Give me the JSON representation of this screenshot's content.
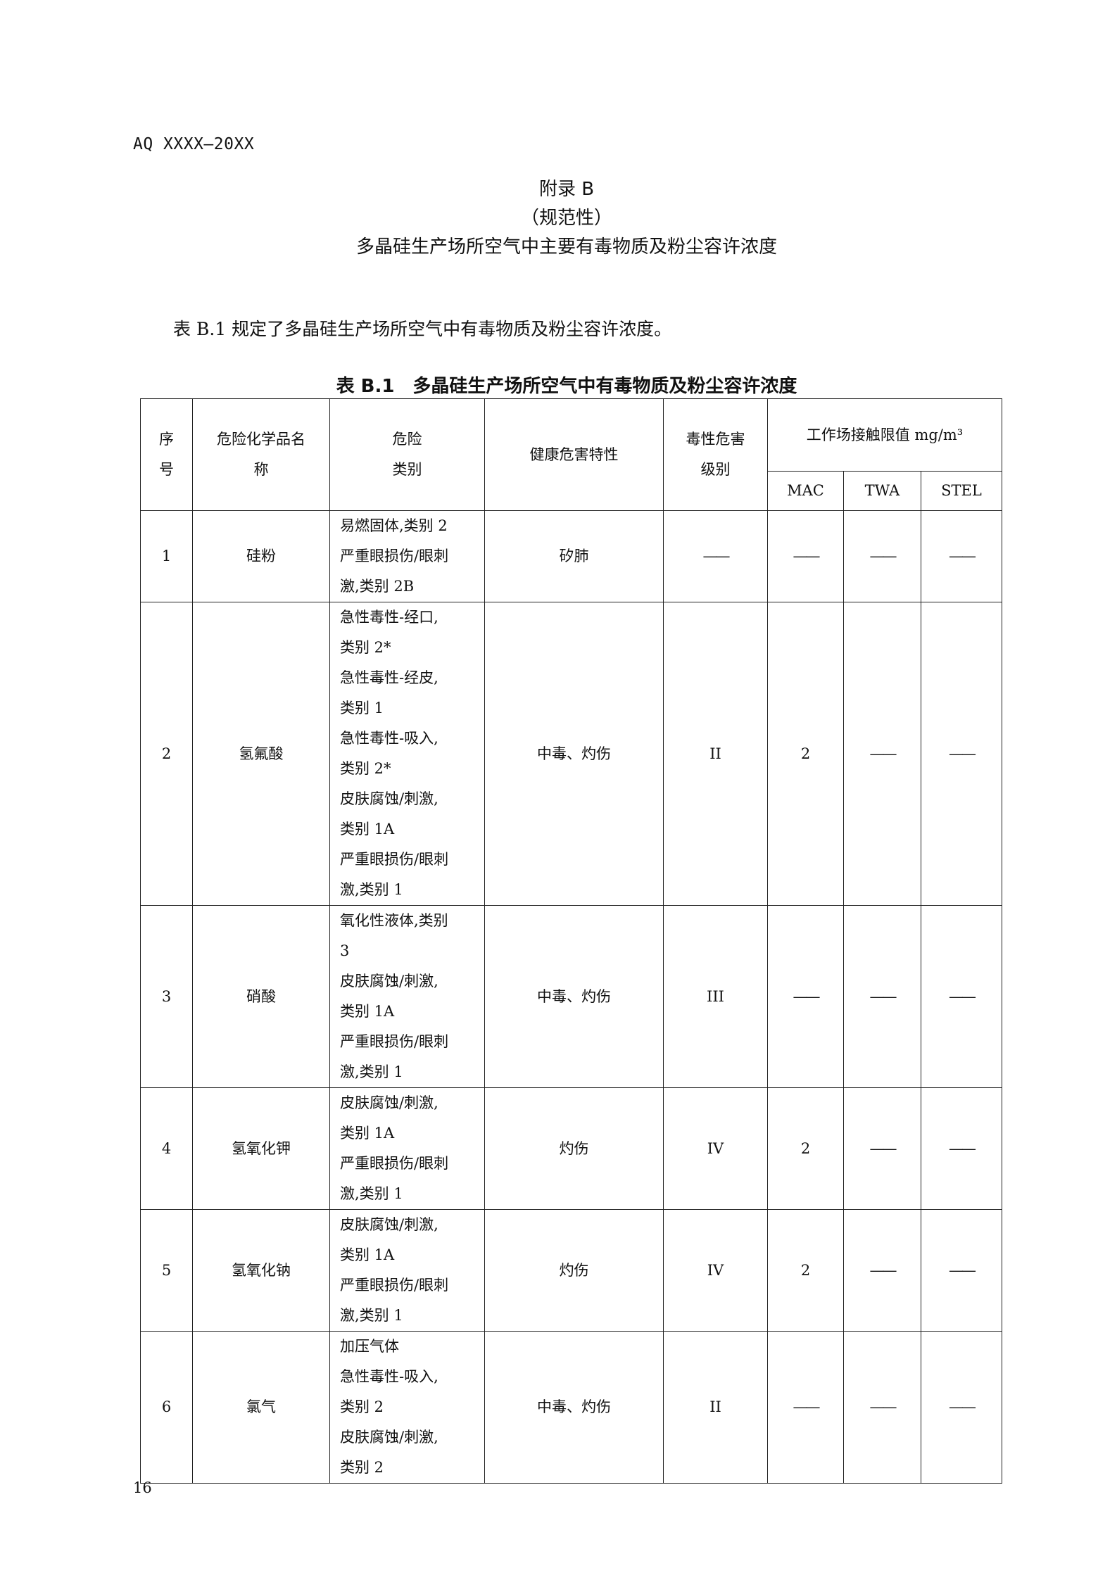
{
  "header": "AQ XXXX—20XX",
  "appendix": {
    "label": "附录 B",
    "type": "（规范性）",
    "title": "多晶硅生产场所空气中主要有毒物质及粉尘容许浓度"
  },
  "intro": "表 B.1 规定了多晶硅生产场所空气中有毒物质及粉尘容许浓度。",
  "table": {
    "caption": "表 B.1　多晶硅生产场所空气中有毒物质及粉尘容许浓度",
    "headers": {
      "no": "序号",
      "name": "危险化学品名称",
      "hazard": "危险类别",
      "health": "健康危害特性",
      "level": "毒性危害级别",
      "limit": "工作场接触限值 mg/m³",
      "mac": "MAC",
      "twa": "TWA",
      "stel": "STEL"
    },
    "rows": [
      {
        "no": "1",
        "name": "硅粉",
        "hazard": [
          "易燃固体,类别 2",
          "严重眼损伤/眼刺",
          "激,类别 2B"
        ],
        "health": "矽肺",
        "level": "——",
        "mac": "——",
        "twa": "——",
        "stel": "——"
      },
      {
        "no": "2",
        "name": "氢氟酸",
        "hazard": [
          "急性毒性-经口,",
          "类别 2*",
          "急性毒性-经皮,",
          "类别 1",
          "急性毒性-吸入,",
          "类别 2*",
          "皮肤腐蚀/刺激,",
          "类别 1A",
          "严重眼损伤/眼刺",
          "激,类别 1"
        ],
        "health": "中毒、灼伤",
        "level": "II",
        "mac": "2",
        "twa": "——",
        "stel": "——"
      },
      {
        "no": "3",
        "name": "硝酸",
        "hazard": [
          "氧化性液体,类别",
          "3",
          "皮肤腐蚀/刺激,",
          "类别 1A",
          "严重眼损伤/眼刺",
          "激,类别 1"
        ],
        "health": "中毒、灼伤",
        "level": "III",
        "mac": "——",
        "twa": "——",
        "stel": "——"
      },
      {
        "no": "4",
        "name": "氢氧化钾",
        "hazard": [
          "皮肤腐蚀/刺激,",
          "类别 1A",
          "严重眼损伤/眼刺",
          "激,类别 1"
        ],
        "health": "灼伤",
        "level": "IV",
        "mac": "2",
        "twa": "——",
        "stel": "——"
      },
      {
        "no": "5",
        "name": "氢氧化钠",
        "hazard": [
          "皮肤腐蚀/刺激,",
          "类别 1A",
          "严重眼损伤/眼刺",
          "激,类别 1"
        ],
        "health": "灼伤",
        "level": "IV",
        "mac": "2",
        "twa": "——",
        "stel": "——"
      },
      {
        "no": "6",
        "name": "氯气",
        "hazard": [
          "加压气体",
          "急性毒性-吸入,",
          "类别 2",
          "皮肤腐蚀/刺激,",
          "类别 2"
        ],
        "health": "中毒、灼伤",
        "level": "II",
        "mac": "——",
        "twa": "——",
        "stel": "——"
      }
    ]
  },
  "page_number": "16"
}
